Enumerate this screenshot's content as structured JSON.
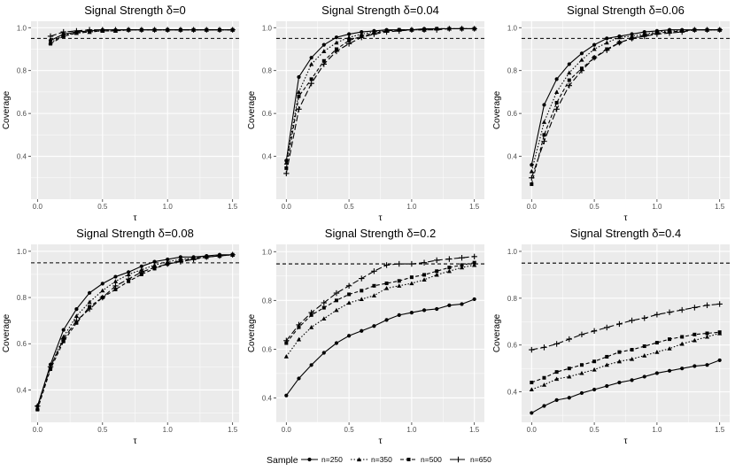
{
  "figure": {
    "legend": {
      "title": "Sample",
      "entries": [
        {
          "label": "n=250",
          "marker": "circle",
          "dash": "solid"
        },
        {
          "label": "n=350",
          "marker": "triangle",
          "dash": "dotted"
        },
        {
          "label": "n=500",
          "marker": "square",
          "dash": "dashed"
        },
        {
          "label": "n=650",
          "marker": "plus",
          "dash": "longdash"
        }
      ]
    },
    "reference_line": 0.95,
    "colors": {
      "panel_bg": "#ebebeb",
      "grid": "#ffffff",
      "series": "#000000"
    }
  },
  "chart_data": [
    {
      "type": "line",
      "title": "Signal Strength δ=0",
      "xlabel": "τ",
      "ylabel": "Coverage",
      "xlim": [
        -0.05,
        1.55
      ],
      "ylim": [
        0.2,
        1.03
      ],
      "xticks": [
        "0.0",
        "0.5",
        "1.0",
        "1.5"
      ],
      "yticks": [
        "0.4",
        "0.6",
        "0.8",
        "1.0"
      ],
      "x": [
        0.1,
        0.2,
        0.3,
        0.4,
        0.5,
        0.6,
        0.7,
        0.8,
        0.9,
        1.0,
        1.1,
        1.2,
        1.3,
        1.4,
        1.5
      ],
      "series": [
        {
          "name": "n=250",
          "values": [
            0.94,
            0.97,
            0.98,
            0.985,
            0.99,
            0.99,
            0.99,
            0.99,
            0.99,
            0.99,
            0.99,
            0.99,
            0.99,
            0.99,
            0.99
          ]
        },
        {
          "name": "n=350",
          "values": [
            0.93,
            0.965,
            0.975,
            0.98,
            0.985,
            0.985,
            0.99,
            0.99,
            0.99,
            0.99,
            0.99,
            0.99,
            0.99,
            0.99,
            0.99
          ]
        },
        {
          "name": "n=500",
          "values": [
            0.925,
            0.96,
            0.975,
            0.98,
            0.985,
            0.985,
            0.99,
            0.99,
            0.99,
            0.99,
            0.99,
            0.99,
            0.99,
            0.99,
            0.99
          ]
        },
        {
          "name": "n=650",
          "values": [
            0.96,
            0.98,
            0.985,
            0.99,
            0.99,
            0.99,
            0.99,
            0.99,
            0.99,
            0.99,
            0.99,
            0.99,
            0.99,
            0.99,
            0.99
          ]
        }
      ]
    },
    {
      "type": "line",
      "title": "Signal Strength δ=0.04",
      "xlabel": "τ",
      "ylabel": "Coverage",
      "xlim": [
        -0.08,
        1.58
      ],
      "ylim": [
        0.2,
        1.03
      ],
      "xticks": [
        "0.0",
        "0.5",
        "1.0",
        "1.5"
      ],
      "yticks": [
        "0.4",
        "0.6",
        "0.8",
        "1.0"
      ],
      "x": [
        0.0,
        0.1,
        0.2,
        0.3,
        0.4,
        0.5,
        0.6,
        0.7,
        0.8,
        0.9,
        1.0,
        1.1,
        1.2,
        1.3,
        1.4,
        1.5
      ],
      "series": [
        {
          "name": "n=250",
          "values": [
            0.38,
            0.77,
            0.86,
            0.92,
            0.955,
            0.97,
            0.98,
            0.985,
            0.99,
            0.99,
            0.99,
            0.995,
            0.995,
            0.995,
            0.995,
            0.995
          ]
        },
        {
          "name": "n=350",
          "values": [
            0.37,
            0.7,
            0.83,
            0.89,
            0.93,
            0.955,
            0.97,
            0.98,
            0.985,
            0.99,
            0.99,
            0.99,
            0.995,
            0.995,
            0.995,
            0.995
          ]
        },
        {
          "name": "n=500",
          "values": [
            0.345,
            0.68,
            0.76,
            0.845,
            0.9,
            0.94,
            0.96,
            0.975,
            0.985,
            0.99,
            0.99,
            0.99,
            0.995,
            0.995,
            0.995,
            0.995
          ]
        },
        {
          "name": "n=650",
          "values": [
            0.32,
            0.62,
            0.74,
            0.83,
            0.89,
            0.925,
            0.955,
            0.97,
            0.98,
            0.985,
            0.99,
            0.99,
            0.99,
            0.995,
            0.995,
            0.995
          ]
        }
      ]
    },
    {
      "type": "line",
      "title": "Signal Strength δ=0.06",
      "xlabel": "τ",
      "ylabel": "Coverage",
      "xlim": [
        -0.08,
        1.58
      ],
      "ylim": [
        0.2,
        1.03
      ],
      "xticks": [
        "0.0",
        "0.5",
        "1.0",
        "1.5"
      ],
      "yticks": [
        "0.4",
        "0.6",
        "0.8",
        "1.0"
      ],
      "x": [
        0.0,
        0.1,
        0.2,
        0.3,
        0.4,
        0.5,
        0.6,
        0.7,
        0.8,
        0.9,
        1.0,
        1.1,
        1.2,
        1.3,
        1.4,
        1.5
      ],
      "series": [
        {
          "name": "n=250",
          "values": [
            0.36,
            0.64,
            0.76,
            0.83,
            0.88,
            0.92,
            0.95,
            0.96,
            0.97,
            0.98,
            0.985,
            0.99,
            0.99,
            0.99,
            0.99,
            0.99
          ]
        },
        {
          "name": "n=350",
          "values": [
            0.33,
            0.56,
            0.7,
            0.79,
            0.85,
            0.9,
            0.93,
            0.955,
            0.96,
            0.97,
            0.98,
            0.985,
            0.985,
            0.99,
            0.99,
            0.99
          ]
        },
        {
          "name": "n=500",
          "values": [
            0.27,
            0.5,
            0.65,
            0.755,
            0.81,
            0.86,
            0.9,
            0.93,
            0.95,
            0.965,
            0.975,
            0.98,
            0.985,
            0.99,
            0.99,
            0.99
          ]
        },
        {
          "name": "n=650",
          "values": [
            0.3,
            0.47,
            0.62,
            0.73,
            0.8,
            0.86,
            0.895,
            0.93,
            0.95,
            0.96,
            0.97,
            0.975,
            0.98,
            0.99,
            0.99,
            0.99
          ]
        }
      ]
    },
    {
      "type": "line",
      "title": "Signal Strength δ=0.08",
      "xlabel": "τ",
      "ylabel": "Coverage",
      "xlim": [
        -0.05,
        1.55
      ],
      "ylim": [
        0.26,
        1.03
      ],
      "xticks": [
        "0.0",
        "0.5",
        "1.0",
        "1.5"
      ],
      "yticks": [
        "0.4",
        "0.6",
        "0.8",
        "1.0"
      ],
      "x": [
        0.0,
        0.1,
        0.2,
        0.3,
        0.4,
        0.5,
        0.6,
        0.7,
        0.8,
        0.9,
        1.0,
        1.1,
        1.2,
        1.3,
        1.4,
        1.5
      ],
      "series": [
        {
          "name": "n=250",
          "values": [
            0.33,
            0.51,
            0.66,
            0.75,
            0.82,
            0.86,
            0.89,
            0.91,
            0.935,
            0.955,
            0.965,
            0.975,
            0.975,
            0.98,
            0.985,
            0.985
          ]
        },
        {
          "name": "n=350",
          "values": [
            0.32,
            0.5,
            0.63,
            0.72,
            0.78,
            0.83,
            0.87,
            0.9,
            0.92,
            0.94,
            0.955,
            0.965,
            0.97,
            0.975,
            0.98,
            0.985
          ]
        },
        {
          "name": "n=500",
          "values": [
            0.315,
            0.49,
            0.61,
            0.69,
            0.76,
            0.8,
            0.835,
            0.87,
            0.9,
            0.925,
            0.945,
            0.96,
            0.97,
            0.975,
            0.98,
            0.985
          ]
        },
        {
          "name": "n=650",
          "values": [
            0.33,
            0.5,
            0.62,
            0.7,
            0.75,
            0.8,
            0.85,
            0.88,
            0.91,
            0.93,
            0.945,
            0.955,
            0.965,
            0.975,
            0.98,
            0.985
          ]
        }
      ]
    },
    {
      "type": "line",
      "title": "Signal Strength δ=0.2",
      "xlabel": "τ",
      "ylabel": "Coverage",
      "xlim": [
        -0.08,
        1.58
      ],
      "ylim": [
        0.3,
        1.03
      ],
      "xticks": [
        "0.0",
        "0.5",
        "1.0",
        "1.5"
      ],
      "yticks": [
        "0.4",
        "0.6",
        "0.8",
        "1.0"
      ],
      "x": [
        0.0,
        0.1,
        0.2,
        0.3,
        0.4,
        0.5,
        0.6,
        0.7,
        0.8,
        0.9,
        1.0,
        1.1,
        1.2,
        1.3,
        1.4,
        1.5
      ],
      "series": [
        {
          "name": "n=250",
          "values": [
            0.41,
            0.48,
            0.535,
            0.585,
            0.625,
            0.655,
            0.675,
            0.695,
            0.72,
            0.74,
            0.75,
            0.76,
            0.765,
            0.78,
            0.785,
            0.805
          ]
        },
        {
          "name": "n=350",
          "values": [
            0.57,
            0.64,
            0.69,
            0.725,
            0.76,
            0.79,
            0.805,
            0.82,
            0.85,
            0.86,
            0.87,
            0.885,
            0.905,
            0.92,
            0.935,
            0.945
          ]
        },
        {
          "name": "n=500",
          "values": [
            0.625,
            0.69,
            0.74,
            0.77,
            0.8,
            0.825,
            0.84,
            0.86,
            0.87,
            0.88,
            0.895,
            0.905,
            0.92,
            0.935,
            0.945,
            0.955
          ]
        },
        {
          "name": "n=650",
          "values": [
            0.635,
            0.7,
            0.75,
            0.79,
            0.83,
            0.86,
            0.89,
            0.92,
            0.945,
            0.95,
            0.95,
            0.955,
            0.965,
            0.97,
            0.975,
            0.98
          ]
        }
      ]
    },
    {
      "type": "line",
      "title": "Signal Strength δ=0.4",
      "xlabel": "τ",
      "ylabel": "Coverage",
      "xlim": [
        -0.08,
        1.58
      ],
      "ylim": [
        0.27,
        1.03
      ],
      "xticks": [
        "0.0",
        "0.5",
        "1.0",
        "1.5"
      ],
      "yticks": [
        "0.4",
        "0.6",
        "0.8",
        "1.0"
      ],
      "x": [
        0.0,
        0.1,
        0.2,
        0.3,
        0.4,
        0.5,
        0.6,
        0.7,
        0.8,
        0.9,
        1.0,
        1.1,
        1.2,
        1.3,
        1.4,
        1.5
      ],
      "series": [
        {
          "name": "n=250",
          "values": [
            0.31,
            0.34,
            0.365,
            0.375,
            0.395,
            0.41,
            0.425,
            0.44,
            0.45,
            0.465,
            0.48,
            0.49,
            0.5,
            0.51,
            0.515,
            0.535
          ]
        },
        {
          "name": "n=350",
          "values": [
            0.41,
            0.43,
            0.455,
            0.465,
            0.48,
            0.495,
            0.515,
            0.53,
            0.54,
            0.555,
            0.57,
            0.585,
            0.605,
            0.62,
            0.635,
            0.65
          ]
        },
        {
          "name": "n=500",
          "values": [
            0.44,
            0.46,
            0.485,
            0.5,
            0.515,
            0.53,
            0.55,
            0.57,
            0.58,
            0.595,
            0.61,
            0.625,
            0.635,
            0.645,
            0.65,
            0.655
          ]
        },
        {
          "name": "n=650",
          "values": [
            0.58,
            0.59,
            0.605,
            0.625,
            0.645,
            0.66,
            0.675,
            0.69,
            0.705,
            0.715,
            0.73,
            0.74,
            0.75,
            0.76,
            0.77,
            0.775
          ]
        }
      ]
    }
  ]
}
